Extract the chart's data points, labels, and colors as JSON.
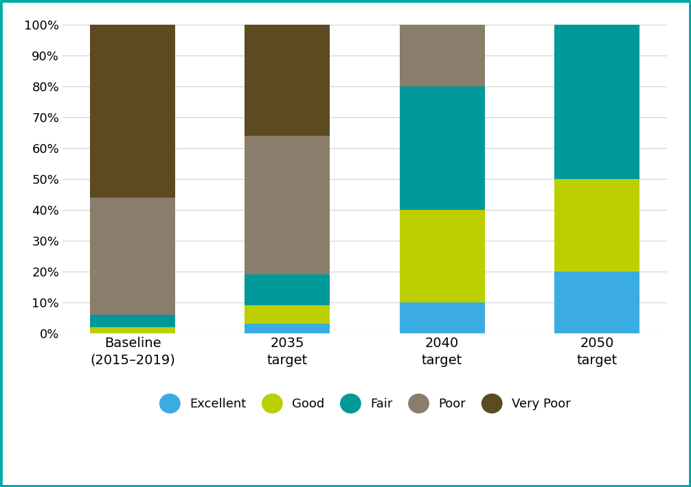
{
  "categories": [
    "Baseline\n(2015–2019)",
    "2035\ntarget",
    "2040\ntarget",
    "2050\ntarget"
  ],
  "series": {
    "Excellent": [
      0,
      3,
      10,
      20
    ],
    "Good": [
      2,
      6,
      30,
      30
    ],
    "Fair": [
      4,
      10,
      40,
      50
    ],
    "Poor": [
      38,
      45,
      20,
      0
    ],
    "Very Poor": [
      56,
      36,
      0,
      0
    ]
  },
  "colors": {
    "Excellent": "#3AACE2",
    "Good": "#BCCF00",
    "Fair": "#009999",
    "Poor": "#8B7D6B",
    "Very Poor": "#5C4A20"
  },
  "bar_width": 0.55,
  "ylim": [
    0,
    100
  ],
  "yticks": [
    0,
    10,
    20,
    30,
    40,
    50,
    60,
    70,
    80,
    90,
    100
  ],
  "ytick_labels": [
    "0%",
    "10%",
    "20%",
    "30%",
    "40%",
    "50%",
    "60%",
    "70%",
    "80%",
    "90%",
    "100%"
  ],
  "background_color": "#ffffff",
  "grid_color": "#d0d0d0",
  "border_color": "#00AAAA",
  "legend_order": [
    "Excellent",
    "Good",
    "Fair",
    "Poor",
    "Very Poor"
  ],
  "stack_order": [
    "Excellent",
    "Good",
    "Fair",
    "Poor",
    "Very Poor"
  ]
}
